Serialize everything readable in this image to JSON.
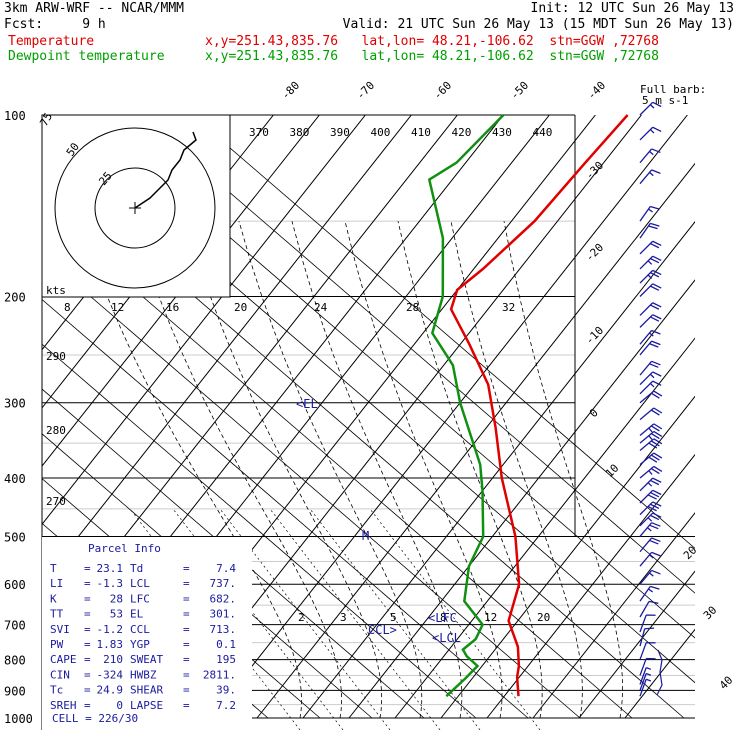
{
  "header": {
    "model": "3km ARW-WRF -- NCAR/MMM",
    "init": "Init: 12 UTC Sun 26 May 13",
    "fcst": "Fcst:     9 h",
    "valid": "Valid: 21 UTC Sun 26 May 13 (15 MDT Sun 26 May 13)",
    "temp_label": "Temperature",
    "temp_loc": "x,y=251.43,835.76   lat,lon= 48.21,-106.62  stn=GGW ,72768",
    "dew_label": "Dewpoint temperature",
    "dew_loc": "x,y=251.43,835.76   lat,lon= 48.21,-106.62  stn=GGW ,72768"
  },
  "colors": {
    "temperature": "#e00000",
    "dewpoint": "#109010",
    "parcel_text": "#1a1aa0",
    "barb": "#1a1aa0"
  },
  "barb_legend": {
    "title": "Full barb:",
    "value": "5 m s-1"
  },
  "parcel_info": {
    "title": "Parcel Info",
    "rows": [
      [
        "T",
        "23.1",
        "Td",
        "7.4"
      ],
      [
        "LI",
        "-1.3",
        "LCL",
        "737."
      ],
      [
        "K",
        "28",
        "LFC",
        "682."
      ],
      [
        "TT",
        "53",
        "EL",
        "301."
      ],
      [
        "SVI",
        "-1.2",
        "CCL",
        "713."
      ],
      [
        "PW",
        "1.83",
        "YGP",
        "0.1"
      ],
      [
        "CAPE",
        "210",
        "SWEAT",
        "195"
      ],
      [
        "CIN",
        "-324",
        "HWBZ",
        "2811."
      ],
      [
        "Tc",
        "24.9",
        "SHEAR",
        "39."
      ],
      [
        "SREH",
        "0",
        "LAPSE",
        "7.2"
      ]
    ],
    "cell": "CELL = 226/30"
  },
  "chart_data": {
    "type": "skew-t log-p sounding",
    "pressure_levels": [
      100,
      200,
      300,
      400,
      500,
      600,
      700,
      800,
      900,
      1000
    ],
    "temperature_labels": [
      "-80",
      "-70",
      "-60",
      "-50",
      "-40",
      "-30",
      "-20",
      "-10",
      "0",
      "10",
      "20",
      "30",
      "40"
    ],
    "theta_labels": [
      "370",
      "380",
      "390",
      "400",
      "410",
      "420",
      "430",
      "440"
    ],
    "adiabat_labels": [
      "290",
      "280",
      "270"
    ],
    "mixing_ratio_labels": [
      "2",
      "3",
      "5",
      "8",
      "12",
      "20"
    ],
    "hodograph": {
      "ring_labels": [
        "75",
        "50",
        "25"
      ],
      "units": "kts",
      "speed_axis": [
        "8",
        "12",
        "16",
        "20",
        "24",
        "28",
        "32"
      ]
    },
    "levels": {
      "el": "EL",
      "lfc": "LFC",
      "lcl": "LCL",
      "ccl": "CCL",
      "m": "M"
    },
    "series": [
      {
        "name": "Temperature",
        "values": [
          [
            23.1,
            920
          ],
          [
            19.5,
            855
          ],
          [
            18.0,
            820
          ],
          [
            14.5,
            762
          ],
          [
            8.0,
            690
          ],
          [
            4.0,
            600
          ],
          [
            -5.0,
            500
          ],
          [
            -18.0,
            400
          ],
          [
            -28.0,
            330
          ],
          [
            -37.0,
            280
          ],
          [
            -48.0,
            240
          ],
          [
            -58.0,
            210
          ],
          [
            -60.0,
            195
          ],
          [
            -58.0,
            180
          ],
          [
            -55.0,
            150
          ],
          [
            -54.0,
            120
          ],
          [
            -53.0,
            100
          ]
        ]
      },
      {
        "name": "Dewpoint temperature",
        "values": [
          [
            7.4,
            920
          ],
          [
            8.5,
            860
          ],
          [
            9.0,
            820
          ],
          [
            5.0,
            790
          ],
          [
            3.0,
            770
          ],
          [
            4.0,
            740
          ],
          [
            3.0,
            700
          ],
          [
            -5.0,
            640
          ],
          [
            -10.0,
            560
          ],
          [
            -12.0,
            500
          ],
          [
            -20.0,
            420
          ],
          [
            -25.0,
            380
          ],
          [
            -40.0,
            300
          ],
          [
            -48.0,
            260
          ],
          [
            -58.0,
            230
          ],
          [
            -62.0,
            200
          ],
          [
            -72.0,
            160
          ],
          [
            -85.0,
            128
          ],
          [
            -82.0,
            120
          ],
          [
            -80.0,
            100
          ]
        ]
      }
    ],
    "wind_barbs": [
      [
        100,
        45,
        15
      ],
      [
        110,
        45,
        15
      ],
      [
        120,
        40,
        15
      ],
      [
        130,
        40,
        15
      ],
      [
        150,
        35,
        15
      ],
      [
        160,
        35,
        20
      ],
      [
        170,
        45,
        20
      ],
      [
        180,
        45,
        25
      ],
      [
        190,
        45,
        25
      ],
      [
        200,
        45,
        20
      ],
      [
        215,
        45,
        20
      ],
      [
        225,
        45,
        20
      ],
      [
        240,
        40,
        15
      ],
      [
        250,
        40,
        20
      ],
      [
        270,
        40,
        20
      ],
      [
        280,
        45,
        15
      ],
      [
        290,
        45,
        15
      ],
      [
        300,
        50,
        20
      ],
      [
        320,
        50,
        20
      ],
      [
        340,
        50,
        25
      ],
      [
        350,
        50,
        25
      ],
      [
        360,
        50,
        30
      ],
      [
        380,
        50,
        30
      ],
      [
        400,
        50,
        25
      ],
      [
        420,
        45,
        25
      ],
      [
        440,
        45,
        30
      ],
      [
        460,
        45,
        30
      ],
      [
        480,
        45,
        25
      ],
      [
        500,
        40,
        25
      ],
      [
        530,
        40,
        20
      ],
      [
        560,
        40,
        15
      ],
      [
        600,
        40,
        15
      ],
      [
        640,
        35,
        15
      ],
      [
        680,
        30,
        10
      ],
      [
        720,
        20,
        10
      ],
      [
        760,
        15,
        10
      ],
      [
        800,
        20,
        10
      ],
      [
        850,
        20,
        10
      ],
      [
        880,
        20,
        5
      ],
      [
        900,
        20,
        5
      ],
      [
        920,
        20,
        5
      ]
    ]
  }
}
